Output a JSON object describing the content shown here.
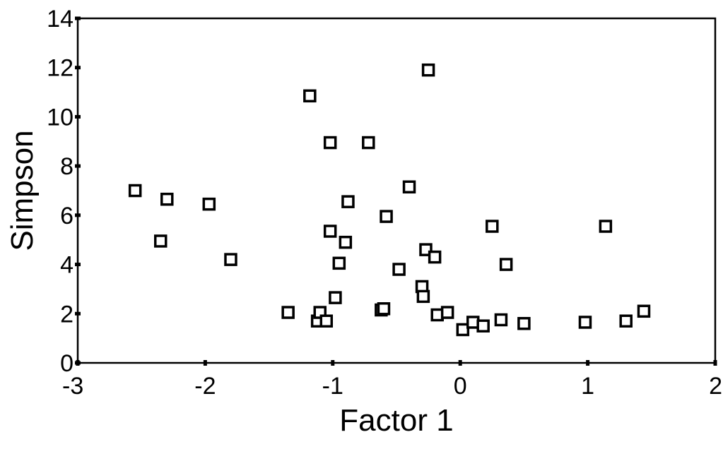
{
  "chart_data": {
    "type": "scatter",
    "title": "",
    "xlabel": "Factor 1",
    "ylabel": "Simpson",
    "xlim": [
      -3,
      2
    ],
    "ylim": [
      0,
      14
    ],
    "xticks": [
      "-3",
      "-2",
      "-1",
      "0",
      "1",
      "2"
    ],
    "yticks": [
      "0",
      "2",
      "4",
      "6",
      "8",
      "10",
      "12",
      "14"
    ],
    "grid": false,
    "marker": "open-square",
    "points": [
      [
        -2.55,
        7.0
      ],
      [
        -2.3,
        6.65
      ],
      [
        -2.35,
        4.95
      ],
      [
        -1.97,
        6.45
      ],
      [
        -1.8,
        4.2
      ],
      [
        -1.35,
        2.05
      ],
      [
        -1.18,
        10.85
      ],
      [
        -1.12,
        1.7
      ],
      [
        -1.1,
        2.05
      ],
      [
        -1.05,
        1.7
      ],
      [
        -1.02,
        8.95
      ],
      [
        -1.02,
        5.35
      ],
      [
        -0.98,
        2.65
      ],
      [
        -0.95,
        4.05
      ],
      [
        -0.9,
        4.9
      ],
      [
        -0.88,
        6.55
      ],
      [
        -0.72,
        8.95
      ],
      [
        -0.62,
        2.15
      ],
      [
        -0.6,
        2.2
      ],
      [
        -0.58,
        5.95
      ],
      [
        -0.48,
        3.8
      ],
      [
        -0.4,
        7.15
      ],
      [
        -0.3,
        3.1
      ],
      [
        -0.29,
        2.7
      ],
      [
        -0.27,
        4.6
      ],
      [
        -0.25,
        11.9
      ],
      [
        -0.2,
        4.3
      ],
      [
        -0.18,
        1.95
      ],
      [
        -0.1,
        2.05
      ],
      [
        0.02,
        1.35
      ],
      [
        0.1,
        1.65
      ],
      [
        0.18,
        1.5
      ],
      [
        0.25,
        5.55
      ],
      [
        0.32,
        1.75
      ],
      [
        0.36,
        4.0
      ],
      [
        0.5,
        1.6
      ],
      [
        0.98,
        1.65
      ],
      [
        1.14,
        5.55
      ],
      [
        1.3,
        1.7
      ],
      [
        1.44,
        2.1
      ]
    ]
  },
  "colors": {
    "marker_stroke": "#000000",
    "axis": "#000000",
    "background": "#ffffff"
  }
}
